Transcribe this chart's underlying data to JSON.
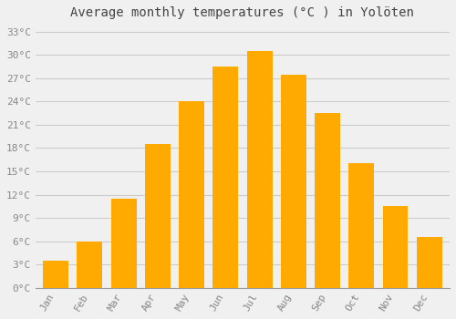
{
  "title": "Average monthly temperatures (°C ) in Yolöten",
  "months": [
    "Jan",
    "Feb",
    "Mar",
    "Apr",
    "May",
    "Jun",
    "Jul",
    "Aug",
    "Sep",
    "Oct",
    "Nov",
    "Dec"
  ],
  "values": [
    3.5,
    6.0,
    11.5,
    18.5,
    24.0,
    28.5,
    30.5,
    27.5,
    22.5,
    16.0,
    10.5,
    6.5
  ],
  "bar_color": "#FFAA00",
  "background_color": "#F0F0F0",
  "grid_color": "#CCCCCC",
  "ytick_labels": [
    "0°C",
    "3°C",
    "6°C",
    "9°C",
    "12°C",
    "15°C",
    "18°C",
    "21°C",
    "24°C",
    "27°C",
    "30°C",
    "33°C"
  ],
  "ytick_values": [
    0,
    3,
    6,
    9,
    12,
    15,
    18,
    21,
    24,
    27,
    30,
    33
  ],
  "ylim": [
    0,
    34
  ],
  "title_fontsize": 10,
  "tick_fontsize": 8,
  "tick_color": "#888888",
  "title_color": "#444444"
}
